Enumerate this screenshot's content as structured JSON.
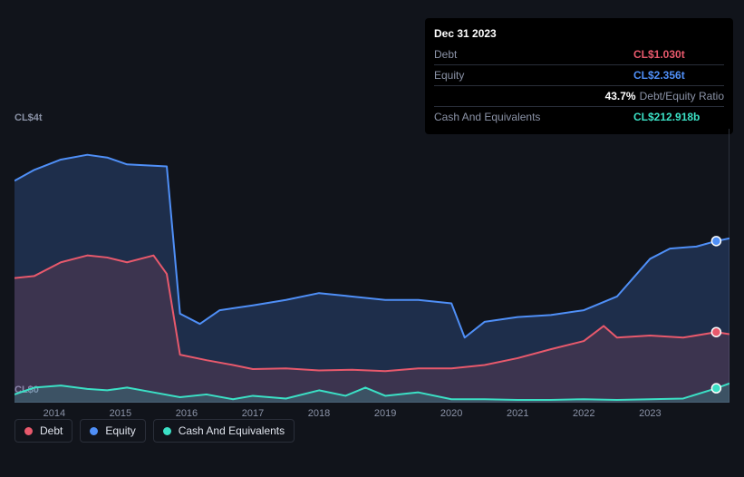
{
  "tooltip": {
    "date": "Dec 31 2023",
    "rows": [
      {
        "label": "Debt",
        "value": "CL$1.030t",
        "color": "#e8596c"
      },
      {
        "label": "Equity",
        "value": "CL$2.356t",
        "color": "#4f8ff7"
      },
      {
        "label": "",
        "value": "43.7%",
        "suffix": "Debt/Equity Ratio",
        "color": "#ffffff"
      },
      {
        "label": "Cash And Equivalents",
        "value": "CL$212.918b",
        "color": "#3be0c5"
      }
    ]
  },
  "chart": {
    "type": "area-line",
    "background": "#11141b",
    "plot_fill_debt": "rgba(232,89,108,0.15)",
    "plot_fill_equity": "rgba(79,143,247,0.22)",
    "plot_fill_cash": "rgba(59,224,197,0.18)",
    "grid_color": "#2a2f3a",
    "x_years": [
      "2014",
      "2015",
      "2016",
      "2017",
      "2018",
      "2019",
      "2020",
      "2021",
      "2022",
      "2023"
    ],
    "x_min": 2013.4,
    "x_max": 2024.2,
    "y_min": 0,
    "y_max": 4,
    "y_tick_top": "CL$4t",
    "y_tick_bottom": "CL$0",
    "series": {
      "debt": {
        "name": "Debt",
        "color": "#e8596c",
        "marker_color": "#e8596c",
        "points": [
          [
            2013.4,
            1.82
          ],
          [
            2013.7,
            1.85
          ],
          [
            2014.1,
            2.05
          ],
          [
            2014.5,
            2.15
          ],
          [
            2014.8,
            2.12
          ],
          [
            2015.1,
            2.05
          ],
          [
            2015.5,
            2.15
          ],
          [
            2015.7,
            1.88
          ],
          [
            2015.9,
            0.7
          ],
          [
            2016.3,
            0.62
          ],
          [
            2016.7,
            0.55
          ],
          [
            2017.0,
            0.49
          ],
          [
            2017.5,
            0.5
          ],
          [
            2018.0,
            0.47
          ],
          [
            2018.5,
            0.48
          ],
          [
            2019.0,
            0.46
          ],
          [
            2019.5,
            0.5
          ],
          [
            2020.0,
            0.5
          ],
          [
            2020.5,
            0.55
          ],
          [
            2021.0,
            0.65
          ],
          [
            2021.5,
            0.78
          ],
          [
            2022.0,
            0.9
          ],
          [
            2022.3,
            1.12
          ],
          [
            2022.5,
            0.95
          ],
          [
            2023.0,
            0.98
          ],
          [
            2023.5,
            0.95
          ],
          [
            2024.0,
            1.03
          ],
          [
            2024.2,
            1.0
          ]
        ]
      },
      "equity": {
        "name": "Equity",
        "color": "#4f8ff7",
        "marker_color": "#4f8ff7",
        "points": [
          [
            2013.4,
            3.24
          ],
          [
            2013.7,
            3.4
          ],
          [
            2014.1,
            3.55
          ],
          [
            2014.5,
            3.62
          ],
          [
            2014.8,
            3.58
          ],
          [
            2015.1,
            3.48
          ],
          [
            2015.5,
            3.46
          ],
          [
            2015.7,
            3.45
          ],
          [
            2015.9,
            1.3
          ],
          [
            2016.2,
            1.15
          ],
          [
            2016.5,
            1.35
          ],
          [
            2017.0,
            1.42
          ],
          [
            2017.5,
            1.5
          ],
          [
            2018.0,
            1.6
          ],
          [
            2018.5,
            1.55
          ],
          [
            2019.0,
            1.5
          ],
          [
            2019.5,
            1.5
          ],
          [
            2020.0,
            1.45
          ],
          [
            2020.2,
            0.95
          ],
          [
            2020.5,
            1.18
          ],
          [
            2021.0,
            1.25
          ],
          [
            2021.5,
            1.28
          ],
          [
            2022.0,
            1.35
          ],
          [
            2022.5,
            1.55
          ],
          [
            2023.0,
            2.1
          ],
          [
            2023.3,
            2.25
          ],
          [
            2023.7,
            2.28
          ],
          [
            2024.0,
            2.36
          ],
          [
            2024.2,
            2.4
          ]
        ]
      },
      "cash": {
        "name": "Cash And Equivalents",
        "color": "#3be0c5",
        "marker_color": "#3be0c5",
        "points": [
          [
            2013.4,
            0.12
          ],
          [
            2013.7,
            0.22
          ],
          [
            2014.1,
            0.25
          ],
          [
            2014.5,
            0.2
          ],
          [
            2014.8,
            0.18
          ],
          [
            2015.1,
            0.22
          ],
          [
            2015.5,
            0.15
          ],
          [
            2015.9,
            0.08
          ],
          [
            2016.3,
            0.12
          ],
          [
            2016.7,
            0.05
          ],
          [
            2017.0,
            0.1
          ],
          [
            2017.5,
            0.06
          ],
          [
            2018.0,
            0.18
          ],
          [
            2018.4,
            0.1
          ],
          [
            2018.7,
            0.22
          ],
          [
            2019.0,
            0.1
          ],
          [
            2019.5,
            0.15
          ],
          [
            2020.0,
            0.05
          ],
          [
            2020.5,
            0.05
          ],
          [
            2021.0,
            0.04
          ],
          [
            2021.5,
            0.04
          ],
          [
            2022.0,
            0.05
          ],
          [
            2022.5,
            0.04
          ],
          [
            2023.0,
            0.05
          ],
          [
            2023.5,
            0.06
          ],
          [
            2024.0,
            0.21
          ],
          [
            2024.2,
            0.28
          ]
        ]
      }
    },
    "cursor_x": 2024.0
  },
  "legend": [
    {
      "label": "Debt",
      "color": "#e8596c"
    },
    {
      "label": "Equity",
      "color": "#4f8ff7"
    },
    {
      "label": "Cash And Equivalents",
      "color": "#3be0c5"
    }
  ]
}
